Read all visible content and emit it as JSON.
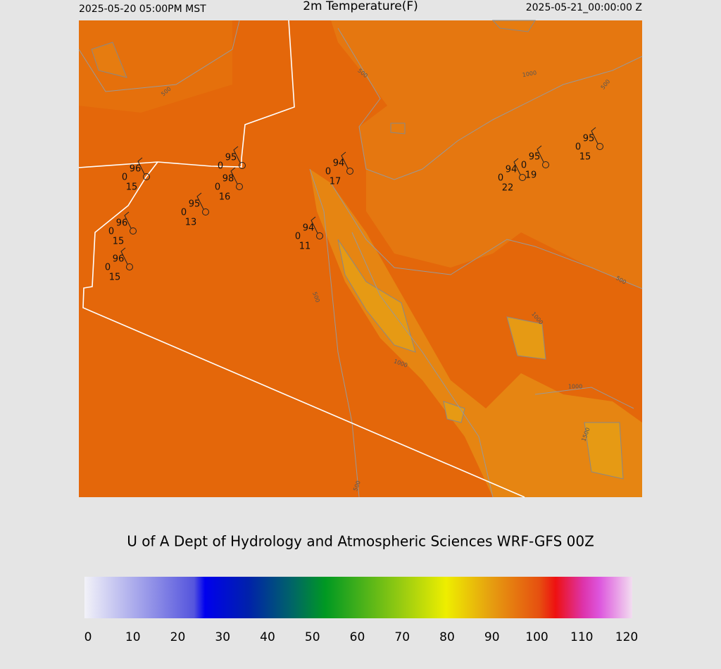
{
  "header": {
    "left": "2025-05-20 05:00PM MST",
    "title": "2m Temperature(F)",
    "right": "2025-05-21_00:00:00 Z"
  },
  "map": {
    "contour_labels": [
      "500",
      "1000",
      "500",
      "500",
      "500",
      "500",
      "1000",
      "1000",
      "1000",
      "1500",
      "500"
    ],
    "stations": [
      {
        "temp": 96,
        "dew": 0,
        "wind": 15
      },
      {
        "temp": 95,
        "dew": 0
      },
      {
        "temp": 98,
        "dew": 0,
        "wind": 16
      },
      {
        "temp": 95,
        "dew": 0,
        "wind": 13
      },
      {
        "temp": 96,
        "dew": 0,
        "wind": 15
      },
      {
        "temp": 96,
        "dew": 0,
        "wind": 15
      },
      {
        "temp": 94,
        "dew": 0,
        "wind": 11
      },
      {
        "temp": 94,
        "dew": 0,
        "wind": 17
      },
      {
        "temp": 94,
        "dew": 0,
        "wind": 22
      },
      {
        "temp": 95,
        "dew": 0,
        "wind": 19
      },
      {
        "temp": 95,
        "dew": 0,
        "wind": 15
      }
    ]
  },
  "credit": "U of A Dept of Hydrology and Atmospheric Sciences WRF-GFS 00Z",
  "colorbar": {
    "ticks": [
      0,
      10,
      20,
      30,
      40,
      50,
      60,
      70,
      80,
      90,
      100,
      110,
      120
    ]
  }
}
